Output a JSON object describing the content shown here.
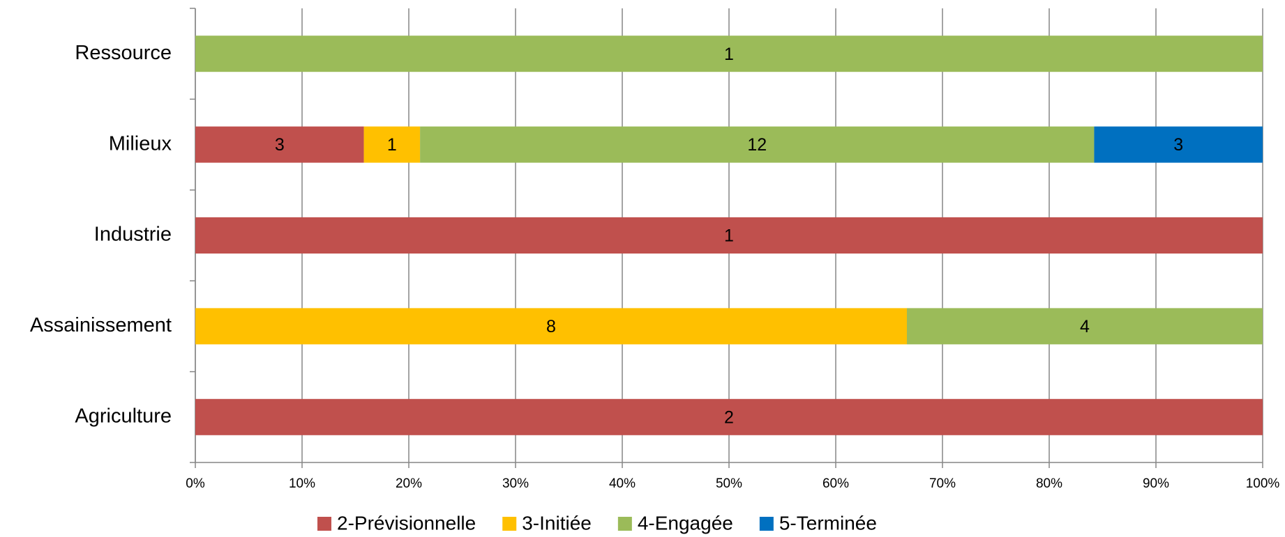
{
  "chart_data": {
    "type": "bar",
    "orientation": "horizontal",
    "stacking": "percent",
    "categories": [
      "Ressource",
      "Milieux",
      "Industrie",
      "Assainissement",
      "Agriculture"
    ],
    "series": [
      {
        "name": "2-Prévisionnelle",
        "color": "#c0504d",
        "values": [
          null,
          3,
          1,
          null,
          2
        ]
      },
      {
        "name": "3-Initiée",
        "color": "#ffc000",
        "values": [
          null,
          1,
          null,
          8,
          null
        ]
      },
      {
        "name": "4-Engagée",
        "color": "#9bbb59",
        "values": [
          1,
          12,
          null,
          4,
          null
        ]
      },
      {
        "name": "5-Terminée",
        "color": "#0070c0",
        "values": [
          null,
          3,
          null,
          null,
          null
        ]
      }
    ],
    "xlim": [
      0,
      100
    ],
    "xticks": [
      {
        "value": 0,
        "label": "0%"
      },
      {
        "value": 10,
        "label": "10%"
      },
      {
        "value": 20,
        "label": "20%"
      },
      {
        "value": 30,
        "label": "30%"
      },
      {
        "value": 40,
        "label": "40%"
      },
      {
        "value": 50,
        "label": "50%"
      },
      {
        "value": 60,
        "label": "60%"
      },
      {
        "value": 70,
        "label": "70%"
      },
      {
        "value": 80,
        "label": "80%"
      },
      {
        "value": 90,
        "label": "90%"
      },
      {
        "value": 100,
        "label": "100%"
      }
    ],
    "grid": true,
    "legend": "bottom"
  }
}
